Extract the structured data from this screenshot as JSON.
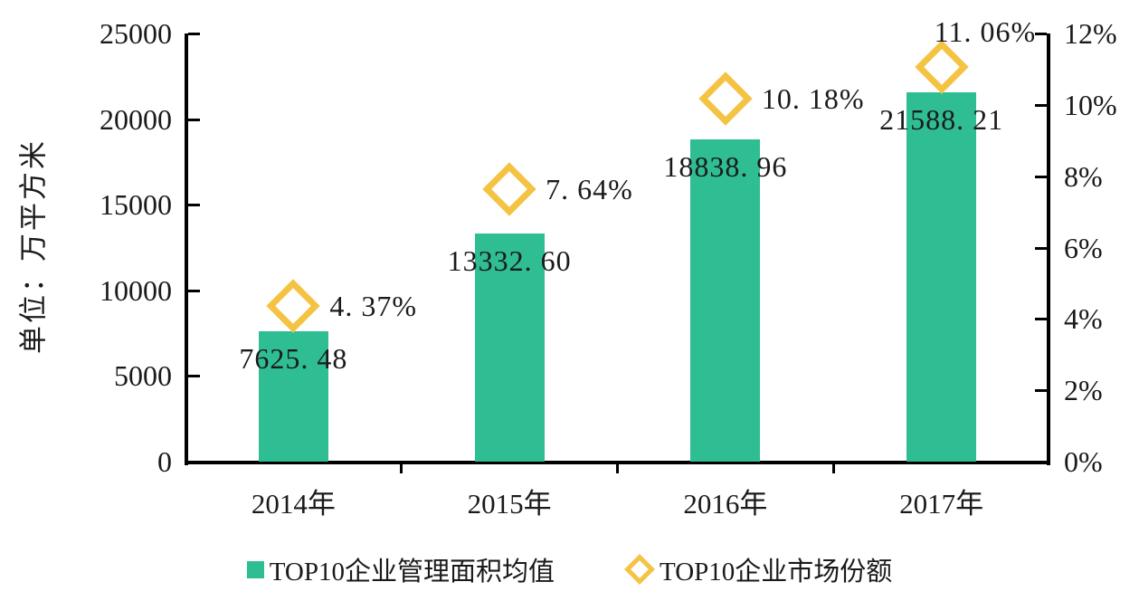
{
  "chart_data": {
    "type": "bar",
    "subtype": "combo-bar-scatter",
    "categories": [
      "2014年",
      "2015年",
      "2016年",
      "2017年"
    ],
    "series": [
      {
        "name": "TOP10企业管理面积均值",
        "kind": "bar",
        "axis": "left",
        "values": [
          7625.48,
          13332.6,
          18838.96,
          21588.21
        ],
        "labels": [
          "7625. 48",
          "13332. 60",
          "18838. 96",
          "21588. 21"
        ],
        "color": "#2FBE93"
      },
      {
        "name": "TOP10企业市场份额",
        "kind": "scatter",
        "marker": "hollow-diamond",
        "axis": "right",
        "values": [
          4.37,
          7.64,
          10.18,
          11.06
        ],
        "labels": [
          "4. 37%",
          "7. 64%",
          "10. 18%",
          "11. 06%"
        ],
        "color": "#F5C343"
      }
    ],
    "left_axis": {
      "label": "单位：万平方米",
      "min": 0,
      "max": 25000,
      "ticks": [
        "25000",
        "20000",
        "15000",
        "10000",
        "5000",
        "0"
      ]
    },
    "right_axis": {
      "min": 0,
      "max": 12,
      "ticks": [
        "12%",
        "10%",
        "8%",
        "6%",
        "4%",
        "2%",
        "0%"
      ]
    },
    "grid": false,
    "legend_position": "bottom",
    "axis_color": "#000000",
    "text_color": "#1a1a1a"
  }
}
